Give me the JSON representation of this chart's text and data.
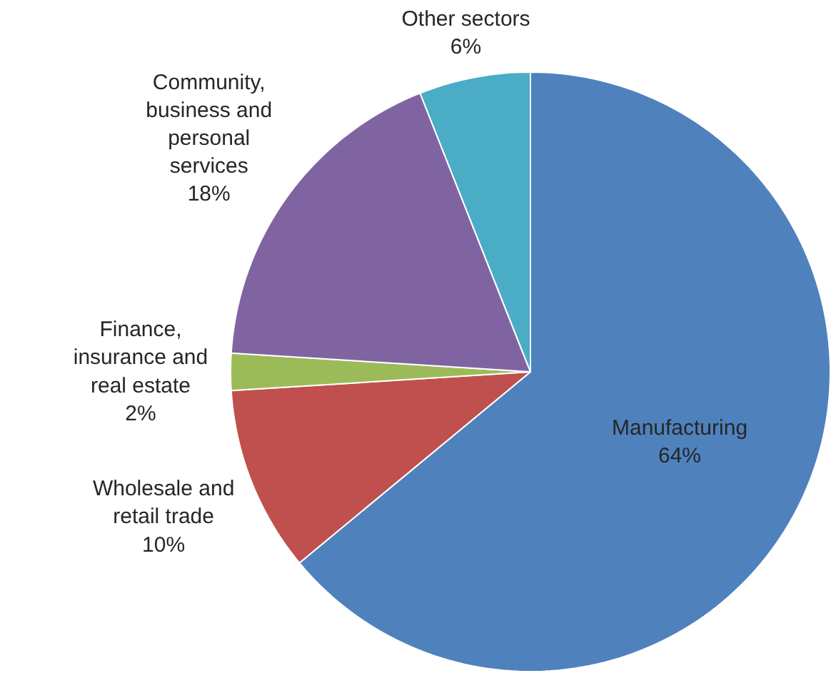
{
  "chart_data": {
    "type": "pie",
    "categories": [
      "Manufacturing",
      "Wholesale and retail trade",
      "Finance, insurance and real estate",
      "Community, business and personal services",
      "Other sectors"
    ],
    "values": [
      64,
      10,
      2,
      18,
      6
    ],
    "value_labels": [
      "64%",
      "10%",
      "2%",
      "18%",
      "6%"
    ],
    "colors": [
      "#4f81bd",
      "#c0504d",
      "#9bbb59",
      "#8064a2",
      "#4bacc6"
    ],
    "legend": false
  }
}
